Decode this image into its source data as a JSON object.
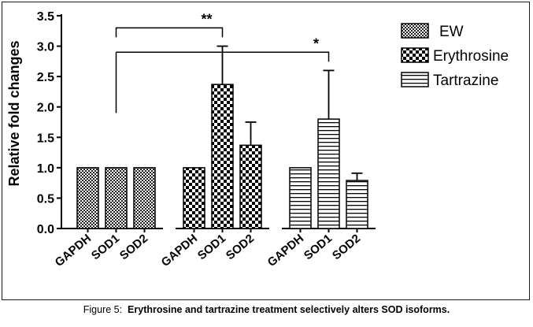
{
  "caption": {
    "prefix": "Figure 5:",
    "text": "Erythrosine and tartrazine treatment selectively alters SOD isoforms."
  },
  "chart_data": {
    "type": "bar",
    "ylabel": "Relative fold changes",
    "xlabel": "",
    "ylim": [
      0,
      3.5
    ],
    "yticks": [
      "0.0",
      "0.5",
      "1.0",
      "1.5",
      "2.0",
      "2.5",
      "3.0",
      "3.5"
    ],
    "grid": false,
    "legend_position": "top-right",
    "groups": [
      {
        "series": "EW",
        "pattern": "checker-fine",
        "categories": [
          "GAPDH",
          "SOD1",
          "SOD2"
        ],
        "values": [
          1.0,
          1.0,
          1.0
        ],
        "errors": [
          0,
          0,
          0
        ]
      },
      {
        "series": "Erythrosine",
        "pattern": "checker-coarse",
        "categories": [
          "GAPDH",
          "SOD1",
          "SOD2"
        ],
        "values": [
          1.0,
          2.37,
          1.37
        ],
        "errors": [
          0,
          0.63,
          0.38
        ]
      },
      {
        "series": "Tartrazine",
        "pattern": "horizontal-stripes",
        "categories": [
          "GAPDH",
          "SOD1",
          "SOD2"
        ],
        "values": [
          1.0,
          1.8,
          0.79
        ],
        "errors": [
          0,
          0.8,
          0.12
        ]
      }
    ],
    "legend": [
      "EW",
      "Erythrosine",
      "Tartrazine"
    ],
    "significance": [
      {
        "label": "**",
        "from_group": 0,
        "from_bar": 1,
        "to_group": 1,
        "to_bar": 1,
        "y": 3.3
      },
      {
        "label": "*",
        "from_group": 0,
        "from_bar": 1,
        "to_group": 2,
        "to_bar": 1,
        "y": 2.9
      }
    ]
  }
}
